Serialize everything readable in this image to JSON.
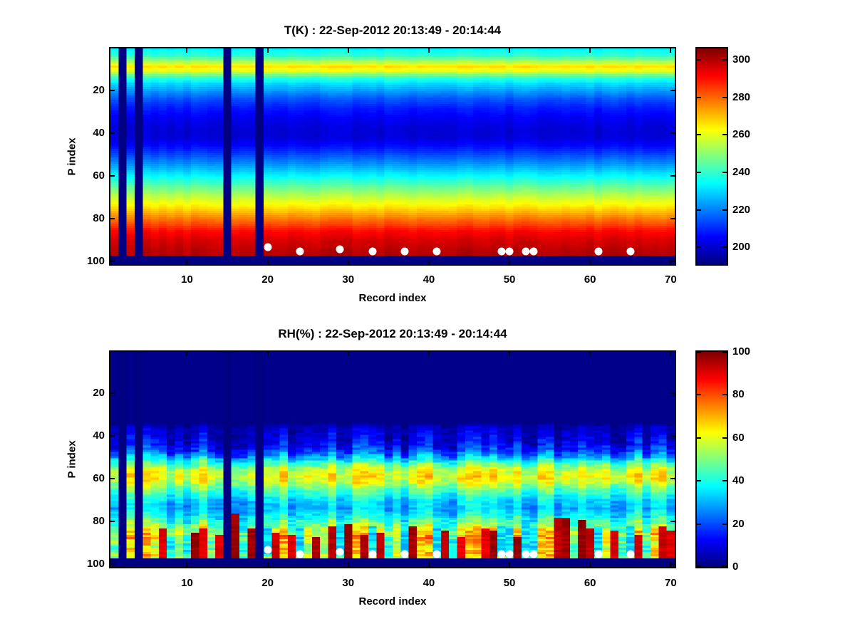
{
  "figure": {
    "background": "#ffffff",
    "text_color": "#000000"
  },
  "chart_data": [
    {
      "type": "heatmap",
      "title": "T(K) : 22-Sep-2012 20:13:49 - 20:14:44",
      "xlabel": "Record index",
      "ylabel": "P index",
      "x_ticks": [
        10,
        20,
        30,
        40,
        50,
        60,
        70
      ],
      "y_ticks": [
        20,
        40,
        60,
        80,
        100
      ],
      "xlim": [
        0.5,
        70.5
      ],
      "ylim": [
        0.5,
        101.5
      ],
      "y_axis_reversed": true,
      "n_records": 70,
      "n_levels": 101,
      "colormap": "jet",
      "clim": [
        191,
        306
      ],
      "colorbar_ticks": [
        200,
        220,
        240,
        260,
        280,
        300
      ],
      "legend": "colorbar-right",
      "grid": false,
      "profile_p": [
        1,
        4,
        7,
        9,
        11,
        14,
        17,
        20,
        24,
        28,
        33,
        38,
        42,
        46,
        50,
        54,
        58,
        62,
        66,
        70,
        74,
        78,
        82,
        86,
        90,
        93,
        96,
        97
      ],
      "profile_value": [
        234,
        240,
        255,
        266,
        260,
        241,
        230,
        224,
        215,
        209,
        204,
        201,
        201,
        206,
        213,
        221,
        229,
        238,
        247,
        256,
        264,
        273,
        282,
        291,
        296,
        298,
        300,
        300
      ],
      "column_noise_K": 3,
      "deep_row_start": 98,
      "missing_records": [
        2,
        4,
        15,
        19
      ],
      "marker_color": "#ffffff",
      "surface_dots_records": [
        20,
        24,
        29,
        33,
        37,
        41,
        49,
        50,
        52,
        53,
        61,
        65
      ],
      "surface_dots_p": [
        93.5,
        95.5,
        94.5,
        95.5,
        95.5,
        95.5,
        95.5,
        95.5,
        95.5,
        95.5,
        95.5,
        95.5
      ]
    },
    {
      "type": "heatmap",
      "title": "RH(%) : 22-Sep-2012 20:13:49 - 20:14:44",
      "xlabel": "Record index",
      "ylabel": "P index",
      "x_ticks": [
        10,
        20,
        30,
        40,
        50,
        60,
        70
      ],
      "y_ticks": [
        20,
        40,
        60,
        80,
        100
      ],
      "xlim": [
        0.5,
        70.5
      ],
      "ylim": [
        0.5,
        101.5
      ],
      "y_axis_reversed": true,
      "n_records": 70,
      "n_levels": 101,
      "colormap": "jet",
      "clim": [
        0,
        100
      ],
      "colorbar_ticks": [
        0,
        20,
        40,
        60,
        80,
        100
      ],
      "legend": "colorbar-right",
      "grid": false,
      "profile_p": [
        1,
        34,
        36,
        40,
        44,
        47,
        50,
        53,
        56,
        59,
        62,
        65,
        68,
        71,
        74,
        77,
        80,
        83,
        86,
        88,
        90,
        92,
        94,
        96,
        97
      ],
      "profile_value": [
        1,
        1,
        6,
        9,
        12,
        18,
        30,
        45,
        57,
        62,
        57,
        47,
        40,
        33,
        31,
        36,
        43,
        52,
        60,
        60,
        55,
        52,
        54,
        57,
        55
      ],
      "noise_amp_p": [
        1,
        33,
        36,
        40,
        44,
        50,
        56,
        62,
        68,
        74,
        80,
        84,
        90,
        96,
        97
      ],
      "noise_amp": [
        0,
        0,
        6,
        10,
        12,
        14,
        12,
        12,
        10,
        10,
        14,
        20,
        24,
        22,
        16
      ],
      "wet_records": [
        7,
        11,
        12,
        14,
        16,
        18,
        21,
        23,
        26,
        28,
        30,
        32,
        34,
        38,
        42,
        44,
        47,
        48,
        51,
        56,
        57,
        59,
        60,
        63,
        66,
        69,
        70
      ],
      "wet_top_p": [
        84,
        86,
        84,
        87,
        77,
        84,
        86,
        87,
        88,
        83,
        82,
        87,
        86,
        83,
        85,
        88,
        84,
        85,
        88,
        79,
        79,
        80,
        84,
        85,
        87,
        83,
        85
      ],
      "deep_row_start": 98,
      "missing_records": [
        2,
        4,
        15,
        19
      ],
      "marker_color": "#ffffff",
      "surface_dots_records": [
        20,
        24,
        29,
        33,
        37,
        41,
        49,
        50,
        52,
        53,
        61,
        65
      ],
      "surface_dots_p": [
        93.5,
        95.5,
        94.5,
        95.5,
        95.5,
        95.5,
        95.5,
        95.5,
        95.5,
        95.5,
        95.5,
        95.5
      ]
    }
  ]
}
